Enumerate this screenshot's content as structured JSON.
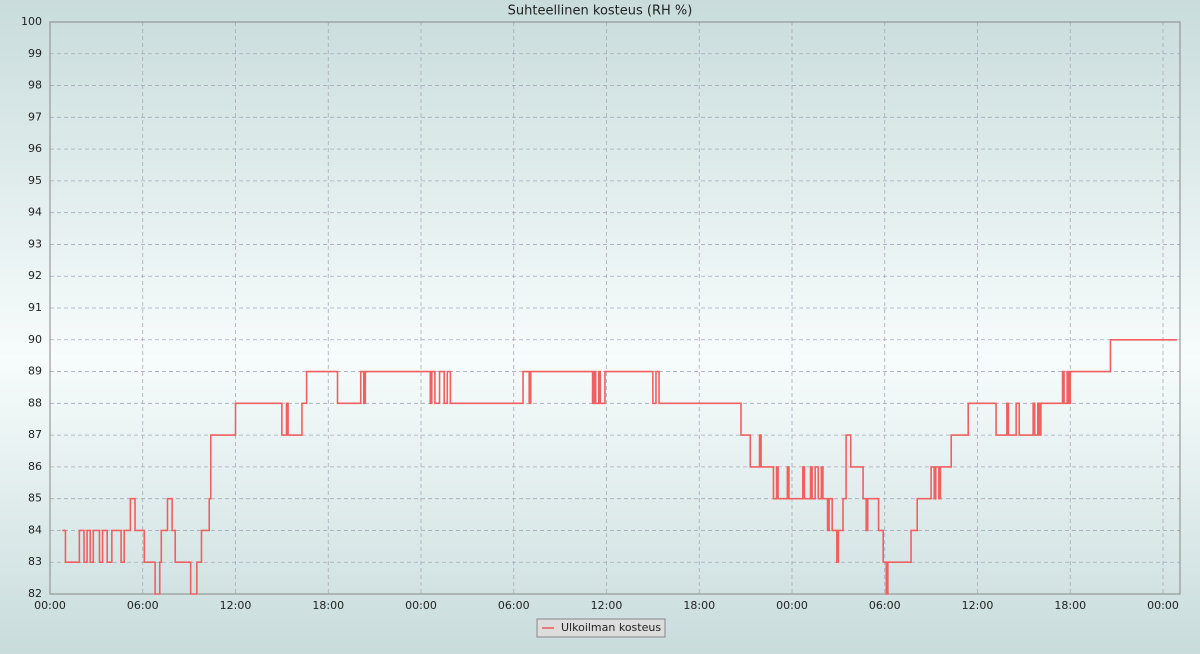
{
  "chart_data": {
    "type": "line",
    "step": true,
    "title": "Suhteellinen kosteus (RH %)",
    "x": [
      0.8,
      1.0,
      1.9,
      2.2,
      2.4,
      2.6,
      2.8,
      3.2,
      3.4,
      3.7,
      4.0,
      4.6,
      4.8,
      5.2,
      5.5,
      6.1,
      6.8,
      7.1,
      7.2,
      7.6,
      7.9,
      8.1,
      9.1,
      9.5,
      9.8,
      10.3,
      10.4,
      12.0,
      15.0,
      15.3,
      15.4,
      16.3,
      16.6,
      18.6,
      20.1,
      20.3,
      20.4,
      24.6,
      24.7,
      24.9,
      25.2,
      25.5,
      25.7,
      25.9,
      30.6,
      31.0,
      31.1,
      35.1,
      35.2,
      35.3,
      35.5,
      35.6,
      35.9,
      39.0,
      39.2,
      39.4,
      44.7,
      45.3,
      45.9,
      46.0,
      46.8,
      47.0,
      47.1,
      47.7,
      47.8,
      48.7,
      48.8,
      49.2,
      49.3,
      49.5,
      49.7,
      49.9,
      50.0,
      50.3,
      50.4,
      50.6,
      50.9,
      51.0,
      51.3,
      51.5,
      51.8,
      52.6,
      52.8,
      52.9,
      53.6,
      53.9,
      54.1,
      54.2,
      55.7,
      56.1,
      57.0,
      57.2,
      57.3,
      57.5,
      57.6,
      58.3,
      59.4,
      61.2,
      61.9,
      62.0,
      62.5,
      62.7,
      63.6,
      63.7,
      63.9,
      64.0,
      64.1,
      65.5,
      65.6,
      65.8,
      65.9,
      66.0,
      68.6,
      72.9
    ],
    "series": [
      {
        "name": "Ulkoilman kosteus",
        "color": "#f06060",
        "values": [
          84,
          83,
          84,
          83,
          84,
          83,
          84,
          83,
          84,
          83,
          84,
          83,
          84,
          85,
          84,
          83,
          82,
          83,
          84,
          85,
          84,
          83,
          82,
          83,
          84,
          85,
          87,
          88,
          87,
          88,
          87,
          88,
          89,
          88,
          89,
          88,
          89,
          88,
          89,
          88,
          89,
          88,
          89,
          88,
          89,
          88,
          89,
          88,
          89,
          88,
          89,
          88,
          89,
          88,
          89,
          88,
          87,
          86,
          87,
          86,
          85,
          86,
          85,
          86,
          85,
          86,
          85,
          86,
          85,
          86,
          85,
          86,
          85,
          84,
          85,
          84,
          83,
          84,
          85,
          87,
          86,
          85,
          84,
          85,
          84,
          83,
          82,
          83,
          84,
          85,
          86,
          85,
          86,
          85,
          86,
          87,
          88,
          87,
          88,
          87,
          88,
          87,
          88,
          87,
          88,
          87,
          88,
          89,
          88,
          89,
          88,
          89,
          90,
          90
        ]
      }
    ],
    "xlim": [
      0,
      73.1
    ],
    "xticks": [
      {
        "value": 0,
        "label": "00:00"
      },
      {
        "value": 6,
        "label": "06:00"
      },
      {
        "value": 12,
        "label": "12:00"
      },
      {
        "value": 18,
        "label": "18:00"
      },
      {
        "value": 24,
        "label": "00:00"
      },
      {
        "value": 30,
        "label": "06:00"
      },
      {
        "value": 36,
        "label": "12:00"
      },
      {
        "value": 42,
        "label": "18:00"
      },
      {
        "value": 48,
        "label": "00:00"
      },
      {
        "value": 54,
        "label": "06:00"
      },
      {
        "value": 60,
        "label": "12:00"
      },
      {
        "value": 66,
        "label": "18:00"
      },
      {
        "value": 72,
        "label": "00:00"
      }
    ],
    "ylim": [
      82,
      100
    ],
    "yticks": [
      82,
      83,
      84,
      85,
      86,
      87,
      88,
      89,
      90,
      91,
      92,
      93,
      94,
      95,
      96,
      97,
      98,
      99,
      100
    ],
    "grid": true,
    "legend": "bottom"
  }
}
